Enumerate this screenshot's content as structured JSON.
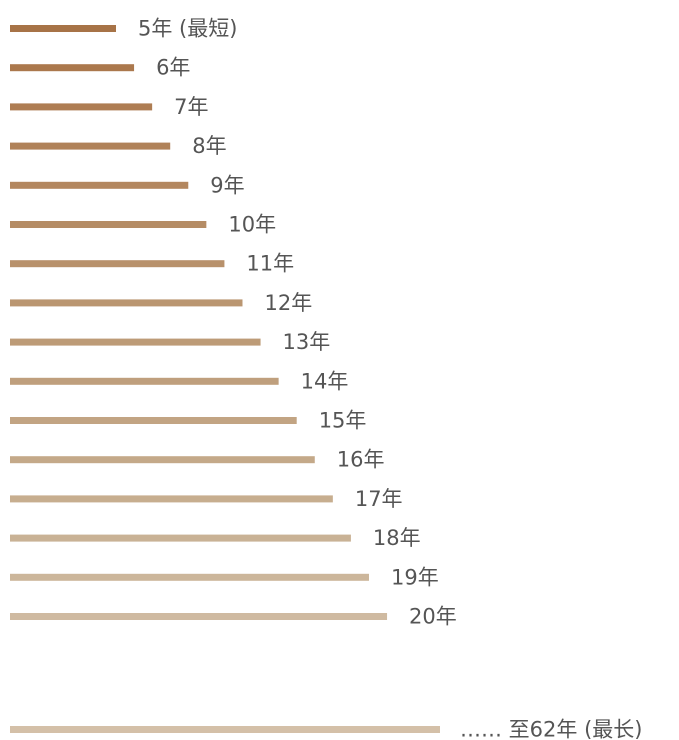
{
  "chart_data": {
    "type": "bar",
    "orientation": "horizontal",
    "title": "",
    "xlabel": "",
    "ylabel": "",
    "grid": false,
    "axes_visible": false,
    "unit": "年",
    "bars": [
      {
        "value": 5,
        "label": "5年 (最短)",
        "color": "#a77347"
      },
      {
        "value": 6,
        "label": "6年",
        "color": "#ab784d"
      },
      {
        "value": 7,
        "label": "7年",
        "color": "#ae7d53"
      },
      {
        "value": 8,
        "label": "8年",
        "color": "#b08259"
      },
      {
        "value": 9,
        "label": "9年",
        "color": "#b3875f"
      },
      {
        "value": 10,
        "label": "10年",
        "color": "#b58c65"
      },
      {
        "value": 11,
        "label": "11年",
        "color": "#b8916b"
      },
      {
        "value": 12,
        "label": "12年",
        "color": "#ba9671"
      },
      {
        "value": 13,
        "label": "13年",
        "color": "#bd9b77"
      },
      {
        "value": 14,
        "label": "14年",
        "color": "#bf9f7d"
      },
      {
        "value": 15,
        "label": "15年",
        "color": "#c2a483"
      },
      {
        "value": 16,
        "label": "16年",
        "color": "#c4a989"
      },
      {
        "value": 17,
        "label": "17年",
        "color": "#c7ae8f"
      },
      {
        "value": 18,
        "label": "18年",
        "color": "#c9b295"
      },
      {
        "value": 19,
        "label": "19年",
        "color": "#ccb69b"
      },
      {
        "value": 20,
        "label": "20年",
        "color": "#cfbaa1"
      }
    ],
    "final_bar": {
      "value": 62,
      "label": "…… 至62年 (最长)",
      "color": "#d4c0a8",
      "axis_break": true
    }
  }
}
